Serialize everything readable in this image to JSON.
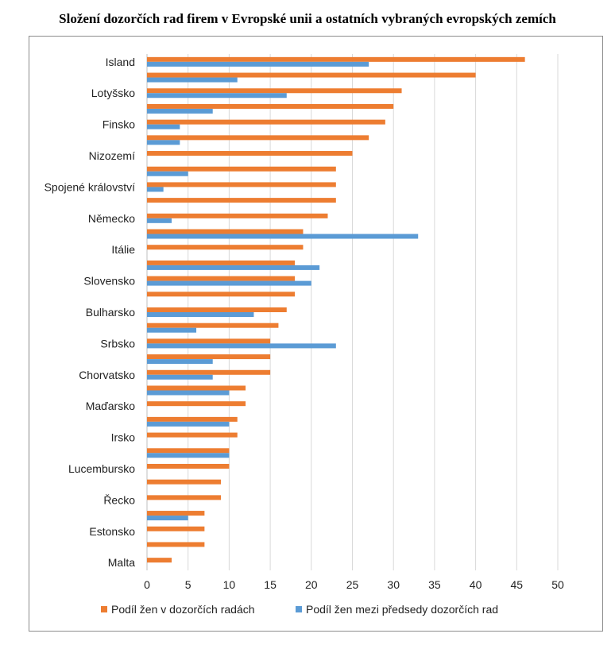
{
  "chart_data": {
    "type": "bar",
    "orientation": "horizontal",
    "title": "Složení dozorčích rad firem v Evropské unii a ostatních vybraných evropských zemích",
    "xlim": [
      0,
      50
    ],
    "xticks": [
      0,
      5,
      10,
      15,
      20,
      25,
      30,
      35,
      40,
      45,
      50
    ],
    "grid": "vertical",
    "legend_position": "bottom",
    "categories": [
      "Island",
      "",
      "Lotyšsko",
      "",
      "Finsko",
      "",
      "Nizozemí",
      "",
      "Spojené království",
      "",
      "Německo",
      "",
      "Itálie",
      "",
      "Slovensko",
      "",
      "Bulharsko",
      "",
      "Srbsko",
      "",
      "Chorvatsko",
      "",
      "Maďarsko",
      "",
      "Irsko",
      "",
      "Lucembursko",
      "",
      "Řecko",
      "",
      "Estonsko",
      "",
      "Malta"
    ],
    "series": [
      {
        "name": "Podíl žen v dozorčích radách",
        "color": "#ed7d31",
        "values": [
          46,
          40,
          31,
          30,
          29,
          27,
          25,
          23,
          23,
          23,
          22,
          19,
          19,
          18,
          18,
          18,
          17,
          16,
          15,
          15,
          15,
          12,
          12,
          11,
          11,
          10,
          10,
          9,
          9,
          7,
          7,
          7,
          3
        ]
      },
      {
        "name": "Podíl žen mezi předsedy dozorčích rad",
        "color": "#5b9bd5",
        "values": [
          27,
          11,
          17,
          8,
          4,
          4,
          0,
          5,
          2,
          0,
          3,
          33,
          0,
          21,
          20,
          0,
          13,
          6,
          23,
          8,
          8,
          10,
          0,
          10,
          0,
          10,
          0,
          0,
          0,
          5,
          0,
          0,
          0
        ]
      }
    ]
  }
}
